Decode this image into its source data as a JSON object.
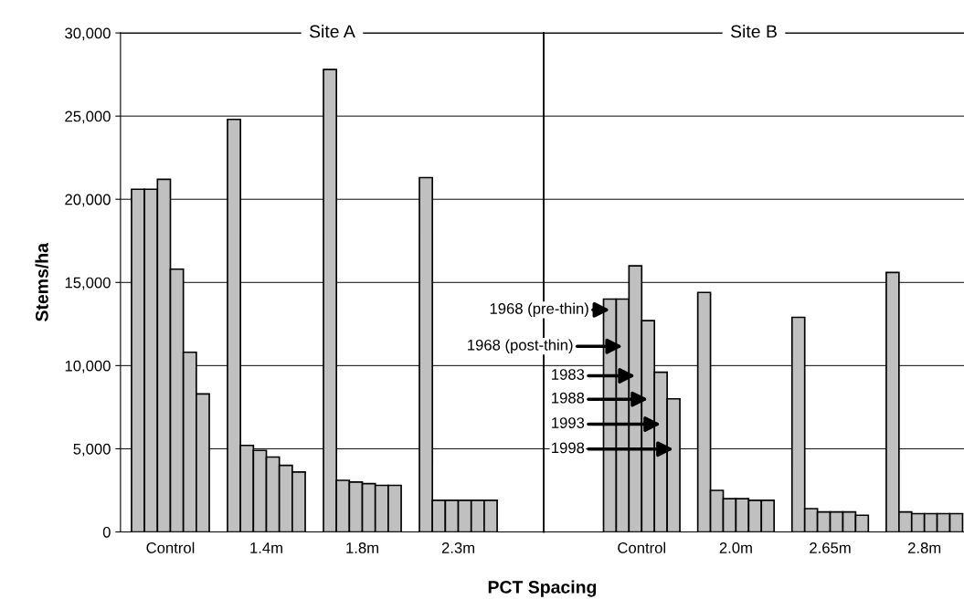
{
  "chart_data": [
    {
      "type": "bar",
      "title": "Site A",
      "xlabel": "PCT Spacing",
      "ylabel": "Stems/ha",
      "categories": [
        "Control",
        "1.4m",
        "1.8m",
        "2.3m"
      ],
      "series": [
        {
          "color": "#c0c0c0",
          "values": [
            20600,
            24800,
            27800,
            21300
          ]
        },
        {
          "color": "#c0c0c0",
          "values": [
            20600,
            5200,
            3100,
            1900
          ]
        },
        {
          "color": "#c0c0c0",
          "values": [
            21200,
            4900,
            3000,
            1900
          ]
        },
        {
          "color": "#c0c0c0",
          "values": [
            15800,
            4500,
            2900,
            1900
          ]
        },
        {
          "color": "#c0c0c0",
          "values": [
            10800,
            4000,
            2800,
            1900
          ]
        },
        {
          "color": "#c0c0c0",
          "values": [
            8300,
            3600,
            2800,
            1900
          ]
        }
      ],
      "ylim": [
        0,
        30000
      ],
      "yticks": [
        0,
        {
          "value": 5000,
          "label": "5,000"
        },
        {
          "value": 10000,
          "label": "10,000"
        },
        {
          "value": 15000,
          "label": "15,000"
        },
        {
          "value": 20000,
          "label": "20,000"
        },
        {
          "value": 25000,
          "label": "25,000"
        },
        {
          "value": 30000,
          "label": "30,000"
        }
      ],
      "grid": "y"
    },
    {
      "type": "bar",
      "title": "Site B",
      "categories": [
        "Control",
        "2.0m",
        "2.65m",
        "2.8m"
      ],
      "series": [
        {
          "name": "1968 (pre-thin)",
          "color": "#c0c0c0",
          "values": [
            14000,
            14400,
            12900,
            15600
          ]
        },
        {
          "name": "1968 (post-thin)",
          "color": "#c0c0c0",
          "values": [
            14000,
            2500,
            1400,
            1200
          ]
        },
        {
          "name": "1983",
          "color": "#c0c0c0",
          "values": [
            16000,
            2000,
            1200,
            1100
          ]
        },
        {
          "name": "1988",
          "color": "#c0c0c0",
          "values": [
            12700,
            2000,
            1200,
            1100
          ]
        },
        {
          "name": "1993",
          "color": "#c0c0c0",
          "values": [
            9600,
            1900,
            1200,
            1100
          ]
        },
        {
          "name": "1998",
          "color": "#c0c0c0",
          "values": [
            8000,
            1900,
            1000,
            1100
          ]
        }
      ],
      "ylim": [
        0,
        30000
      ],
      "yticks": [
        0,
        5000,
        10000,
        15000,
        20000,
        25000,
        30000
      ],
      "tick_labels": "x",
      "grid": "y",
      "legend": "left"
    }
  ]
}
